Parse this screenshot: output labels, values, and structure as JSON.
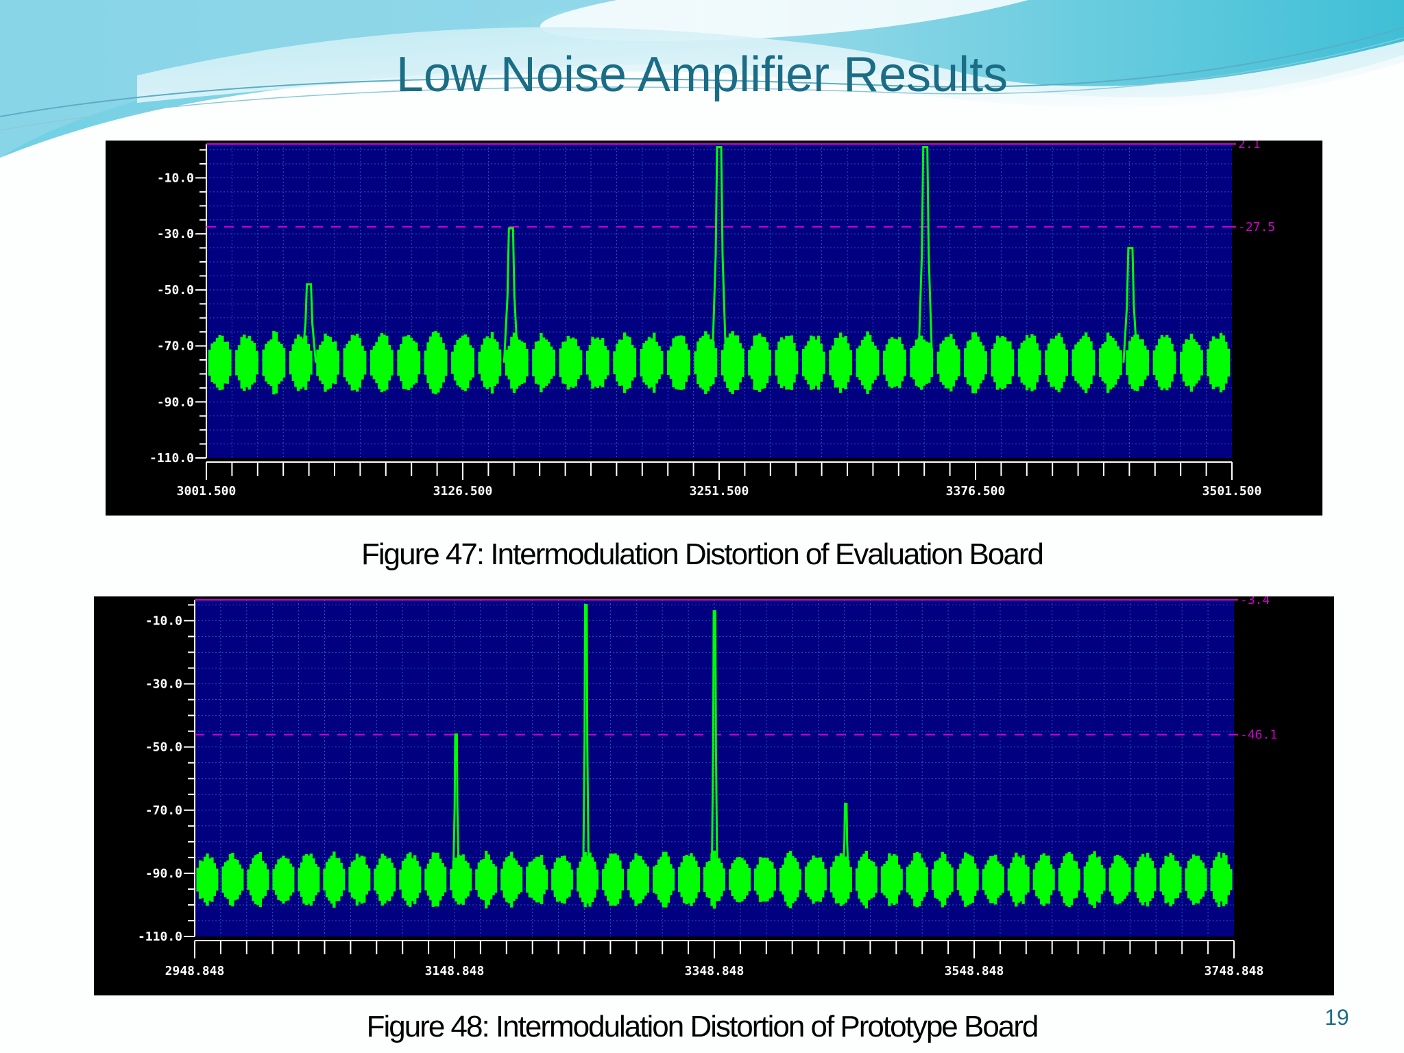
{
  "slide": {
    "title": "Low Noise Amplifier Results",
    "page_number": "19"
  },
  "colors": {
    "title": "#1b6d86",
    "plot_background": "#000080",
    "trace": "#00ff00",
    "reference": "#d000d0",
    "frame": "#000000"
  },
  "chart_data": [
    {
      "type": "line",
      "caption": "Figure 47: Intermodulation Distortion of  Evaluation Board",
      "xlim": [
        3001.5,
        3501.5
      ],
      "ylim": [
        -110,
        2.1
      ],
      "x_ticks": [
        "3001.500",
        "3126.500",
        "3251.500",
        "3376.500",
        "3501.500"
      ],
      "x_tick_values": [
        3001.5,
        3126.5,
        3251.5,
        3376.5,
        3501.5
      ],
      "y_ticks": [
        "-10.0",
        "-30.0",
        "-50.0",
        "-70.0",
        "-90.0",
        "-110.0"
      ],
      "y_tick_values": [
        -10,
        -30,
        -50,
        -70,
        -90,
        -110
      ],
      "reference_lines": [
        {
          "value": 2.1,
          "label": "2.1",
          "style": "solid"
        },
        {
          "value": -27.5,
          "label": "-27.5",
          "style": "dashed"
        }
      ],
      "noise_floor": {
        "min": -86,
        "max": -66
      },
      "peaks": [
        {
          "x": 3051.5,
          "y": -48
        },
        {
          "x": 3150.0,
          "y": -28
        },
        {
          "x": 3251.5,
          "y": 1
        },
        {
          "x": 3352.0,
          "y": 1
        },
        {
          "x": 3452.0,
          "y": -35
        }
      ],
      "grid": true
    },
    {
      "type": "line",
      "caption": "Figure 48: Intermodulation Distortion of  Prototype Board",
      "xlim": [
        2948.848,
        3748.848
      ],
      "ylim": [
        -110,
        -3.4
      ],
      "x_ticks": [
        "2948.848",
        "3148.848",
        "3348.848",
        "3548.848",
        "3748.848"
      ],
      "x_tick_values": [
        2948.848,
        3148.848,
        3348.848,
        3548.848,
        3748.848
      ],
      "y_ticks": [
        "-10.0",
        "-30.0",
        "-50.0",
        "-70.0",
        "-90.0",
        "-110.0"
      ],
      "y_tick_values": [
        -10,
        -30,
        -50,
        -70,
        -90,
        -110
      ],
      "reference_lines": [
        {
          "value": -3.4,
          "label": "-3.4",
          "style": "solid"
        },
        {
          "value": -46.1,
          "label": "-46.1",
          "style": "dashed"
        }
      ],
      "noise_floor": {
        "min": -100,
        "max": -84
      },
      "peaks": [
        {
          "x": 3150.0,
          "y": -46
        },
        {
          "x": 3250.0,
          "y": -5
        },
        {
          "x": 3349.0,
          "y": -7
        },
        {
          "x": 3450.0,
          "y": -68
        }
      ],
      "grid": true
    }
  ]
}
